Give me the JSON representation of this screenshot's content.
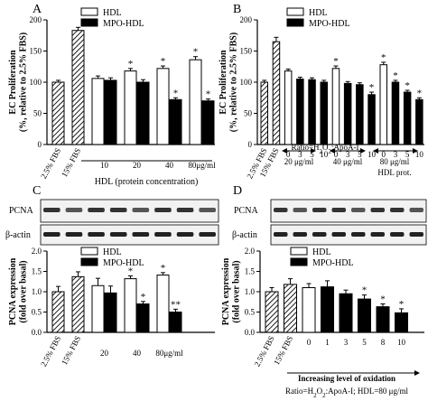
{
  "chart_data": [
    {
      "panel": "A",
      "type": "bar",
      "ylabel": "EC Proliferation\n(%, relative to 2.5% FBS)",
      "ylim": [
        0,
        200
      ],
      "yticks": [
        0,
        50,
        100,
        150,
        200
      ],
      "legend": {
        "placement": "top-center",
        "entries": [
          "HDL",
          "MPO-HDL"
        ]
      },
      "xlabel": "HDL (protein concentration)",
      "groups": [
        {
          "label": "2.5% FBS",
          "rot": true,
          "bars": [
            {
              "series": "FBS",
              "style": "hatch",
              "value": 100,
              "err": 3
            }
          ]
        },
        {
          "label": "15% FBS",
          "rot": true,
          "bars": [
            {
              "series": "FBS",
              "style": "hatch",
              "value": 183,
              "err": 5
            }
          ]
        },
        {
          "label": "10",
          "bars": [
            {
              "series": "HDL",
              "style": "white",
              "value": 106,
              "err": 4
            },
            {
              "series": "MPO-HDL",
              "style": "black",
              "value": 103,
              "err": 4
            }
          ]
        },
        {
          "label": "20",
          "bars": [
            {
              "series": "HDL",
              "style": "white",
              "value": 118,
              "err": 4,
              "star": "*"
            },
            {
              "series": "MPO-HDL",
              "style": "black",
              "value": 100,
              "err": 4
            }
          ]
        },
        {
          "label": "40",
          "bars": [
            {
              "series": "HDL",
              "style": "white",
              "value": 122,
              "err": 4,
              "star": "*"
            },
            {
              "series": "MPO-HDL",
              "style": "black",
              "value": 72,
              "err": 3,
              "star": "*"
            }
          ]
        },
        {
          "label": "80μg/ml",
          "bars": [
            {
              "series": "HDL",
              "style": "white",
              "value": 136,
              "err": 5,
              "star": "*"
            },
            {
              "series": "MPO-HDL",
              "style": "black",
              "value": 70,
              "err": 3,
              "star": "*"
            }
          ]
        }
      ]
    },
    {
      "panel": "B",
      "type": "bar",
      "ylabel": "EC Proliferation\n(%, relative to 2.5% FBS)",
      "ylim": [
        0,
        200
      ],
      "yticks": [
        0,
        50,
        100,
        150,
        200
      ],
      "legend": {
        "placement": "top-center",
        "entries": [
          "HDL",
          "MPO-HDL"
        ]
      },
      "xlabel": "Ratio=H₂O₂:ApoA-I",
      "subgroups": [
        "20 μg/ml",
        "40 μg/ml",
        "80 μg/ml"
      ],
      "extra_label": "HDL prot.",
      "groups": [
        {
          "label": "2.5% FBS",
          "rot": true,
          "bars": [
            {
              "series": "FBS",
              "style": "hatch",
              "value": 100,
              "err": 3
            }
          ]
        },
        {
          "label": "15% FBS",
          "rot": true,
          "bars": [
            {
              "series": "FBS",
              "style": "hatch",
              "value": 165,
              "err": 7
            }
          ]
        },
        {
          "label": "0",
          "bars": [
            {
              "series": "HDL",
              "style": "white",
              "value": 118,
              "err": 3
            }
          ]
        },
        {
          "label": "3",
          "bars": [
            {
              "series": "MPO-HDL",
              "style": "black",
              "value": 105,
              "err": 3
            }
          ]
        },
        {
          "label": "5",
          "bars": [
            {
              "series": "MPO-HDL",
              "style": "black",
              "value": 104,
              "err": 3
            }
          ]
        },
        {
          "label": "10",
          "bars": [
            {
              "series": "MPO-HDL",
              "style": "black",
              "value": 100,
              "err": 3
            }
          ]
        },
        {
          "label": "0",
          "bars": [
            {
              "series": "HDL",
              "style": "white",
              "value": 122,
              "err": 4,
              "star": "*"
            }
          ]
        },
        {
          "label": "3",
          "bars": [
            {
              "series": "MPO-HDL",
              "style": "black",
              "value": 98,
              "err": 3
            }
          ]
        },
        {
          "label": "5",
          "bars": [
            {
              "series": "MPO-HDL",
              "style": "black",
              "value": 96,
              "err": 3
            }
          ]
        },
        {
          "label": "10",
          "bars": [
            {
              "series": "MPO-HDL",
              "style": "black",
              "value": 80,
              "err": 4,
              "star": "*"
            }
          ]
        },
        {
          "label": "0",
          "bars": [
            {
              "series": "HDL",
              "style": "white",
              "value": 128,
              "err": 4,
              "star": "*"
            }
          ]
        },
        {
          "label": "3",
          "bars": [
            {
              "series": "MPO-HDL",
              "style": "black",
              "value": 100,
              "err": 3,
              "star": "*"
            }
          ]
        },
        {
          "label": "5",
          "bars": [
            {
              "series": "MPO-HDL",
              "style": "black",
              "value": 84,
              "err": 3,
              "star": "*"
            }
          ]
        },
        {
          "label": "10",
          "bars": [
            {
              "series": "MPO-HDL",
              "style": "black",
              "value": 72,
              "err": 3,
              "star": "*"
            }
          ]
        }
      ]
    },
    {
      "panel": "C",
      "type": "bar",
      "ylabel": "PCNA expression\n(fold over basal)",
      "ylim": [
        0,
        2.0
      ],
      "yticks": [
        0.0,
        0.5,
        1.0,
        1.5,
        2.0
      ],
      "blot_labels": [
        "PCNA",
        "β-actin"
      ],
      "legend": {
        "placement": "top-center",
        "entries": [
          "HDL",
          "MPO-HDL"
        ]
      },
      "groups": [
        {
          "label": "2.5% FBS",
          "rot": true,
          "bars": [
            {
              "series": "FBS",
              "style": "hatch",
              "value": 1.0,
              "err": 0.13
            }
          ]
        },
        {
          "label": "15% FBS",
          "rot": true,
          "bars": [
            {
              "series": "FBS",
              "style": "hatch",
              "value": 1.37,
              "err": 0.12
            }
          ]
        },
        {
          "label": "20",
          "bars": [
            {
              "series": "HDL",
              "style": "white",
              "value": 1.15,
              "err": 0.18
            },
            {
              "series": "MPO-HDL",
              "style": "black",
              "value": 0.97,
              "err": 0.17
            }
          ]
        },
        {
          "label": "40",
          "bars": [
            {
              "series": "HDL",
              "style": "white",
              "value": 1.32,
              "err": 0.07,
              "star": "*"
            },
            {
              "series": "MPO-HDL",
              "style": "black",
              "value": 0.7,
              "err": 0.06,
              "star": "*"
            }
          ]
        },
        {
          "label": "80μg/ml",
          "bars": [
            {
              "series": "HDL",
              "style": "white",
              "value": 1.41,
              "err": 0.06,
              "star": "*"
            },
            {
              "series": "MPO-HDL",
              "style": "black",
              "value": 0.5,
              "err": 0.07,
              "star": "**"
            }
          ]
        }
      ]
    },
    {
      "panel": "D",
      "type": "bar",
      "ylabel": "PCNA expression\n(fold over basal)",
      "ylim": [
        0,
        2.0
      ],
      "yticks": [
        0.0,
        0.5,
        1.0,
        1.5,
        2.0
      ],
      "blot_labels": [
        "PCNA",
        "β-actin"
      ],
      "legend": {
        "placement": "top-center",
        "entries": [
          "HDL",
          "MPO-HDL"
        ]
      },
      "arrow_label": "Increasing level of oxidation",
      "footnote": "Ratio=H₂O₂:ApoA-I; HDL=80 μg/ml",
      "groups": [
        {
          "label": "2.5% FBS",
          "rot": true,
          "bars": [
            {
              "series": "FBS",
              "style": "hatch",
              "value": 1.0,
              "err": 0.1
            }
          ]
        },
        {
          "label": "15% FBS",
          "rot": true,
          "bars": [
            {
              "series": "FBS",
              "style": "hatch",
              "value": 1.18,
              "err": 0.14
            }
          ]
        },
        {
          "label": "0",
          "bars": [
            {
              "series": "HDL",
              "style": "white",
              "value": 1.1,
              "err": 0.1
            }
          ]
        },
        {
          "label": "1",
          "bars": [
            {
              "series": "MPO-HDL",
              "style": "black",
              "value": 1.12,
              "err": 0.15
            }
          ]
        },
        {
          "label": "3",
          "bars": [
            {
              "series": "MPO-HDL",
              "style": "black",
              "value": 0.95,
              "err": 0.09
            }
          ]
        },
        {
          "label": "5",
          "bars": [
            {
              "series": "MPO-HDL",
              "style": "black",
              "value": 0.82,
              "err": 0.1,
              "star": "*"
            }
          ]
        },
        {
          "label": "8",
          "bars": [
            {
              "series": "MPO-HDL",
              "style": "black",
              "value": 0.63,
              "err": 0.07,
              "star": "*"
            }
          ]
        },
        {
          "label": "10",
          "bars": [
            {
              "series": "MPO-HDL",
              "style": "black",
              "value": 0.48,
              "err": 0.1,
              "star": "*"
            }
          ]
        }
      ]
    }
  ]
}
